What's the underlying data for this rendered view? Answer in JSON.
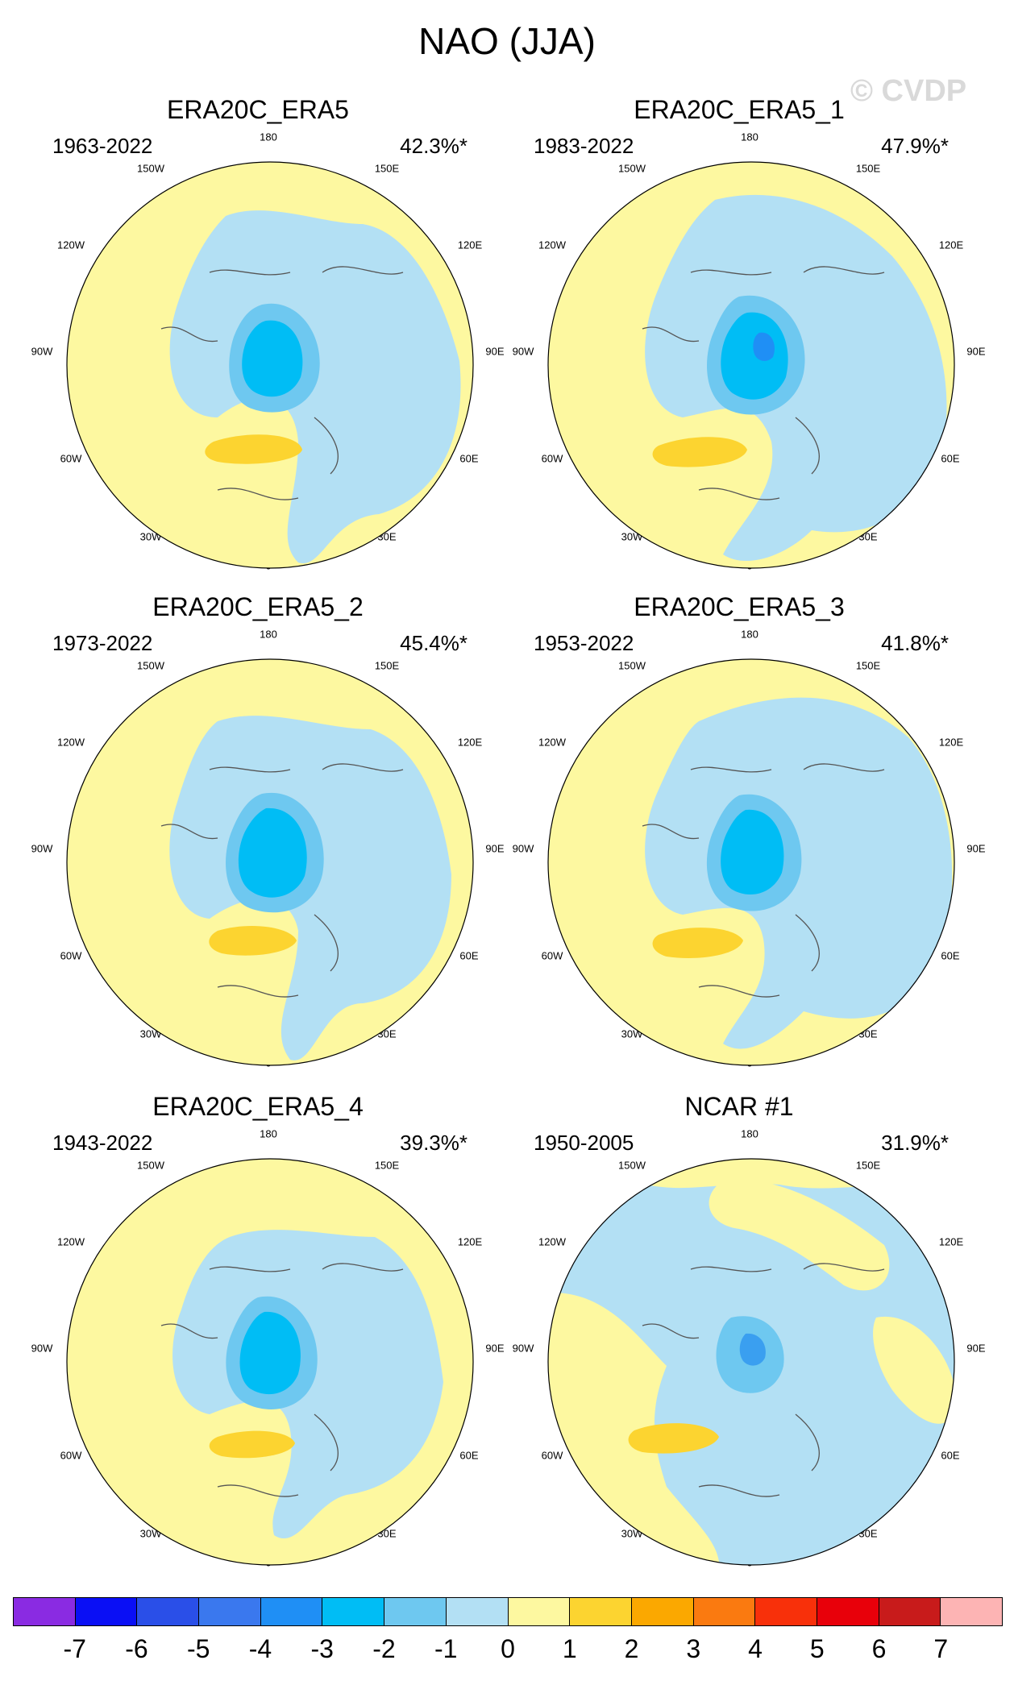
{
  "title": "NAO (JJA)",
  "watermark": "© CVDP",
  "panels": [
    {
      "name": "ERA20C_ERA5",
      "years": "1963-2022",
      "pct": "42.3%*"
    },
    {
      "name": "ERA20C_ERA5_1",
      "years": "1983-2022",
      "pct": "47.9%*"
    },
    {
      "name": "ERA20C_ERA5_2",
      "years": "1973-2022",
      "pct": "45.4%*"
    },
    {
      "name": "ERA20C_ERA5_3",
      "years": "1953-2022",
      "pct": "41.8%*"
    },
    {
      "name": "ERA20C_ERA5_4",
      "years": "1943-2022",
      "pct": "39.3%*"
    },
    {
      "name": "NCAR #1",
      "years": "1950-2005",
      "pct": "31.9%*"
    }
  ],
  "lon_labels": [
    "180",
    "150E",
    "120E",
    "90E",
    "60E",
    "30E",
    "0",
    "30W",
    "60W",
    "90W",
    "120W",
    "150W"
  ],
  "colorbar": {
    "labels": [
      "-7",
      "-6",
      "-5",
      "-4",
      "-3",
      "-2",
      "-1",
      "0",
      "1",
      "2",
      "3",
      "4",
      "5",
      "6",
      "7"
    ],
    "colors": [
      "#8a2be2",
      "#0a0ff5",
      "#2a4fe8",
      "#3a78ee",
      "#1f8ff5",
      "#00bdf5",
      "#6ec8f0",
      "#b3e0f4",
      "#fdf8a0",
      "#fcd430",
      "#fba800",
      "#fa7a10",
      "#f8300a",
      "#e8000a",
      "#c81b1b",
      "#fdb4b4"
    ]
  }
}
